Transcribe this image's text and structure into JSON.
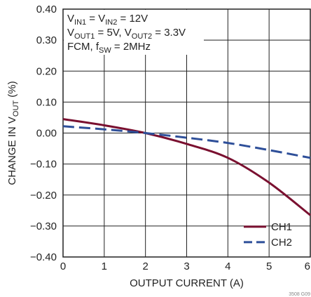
{
  "chart_data": {
    "type": "line",
    "xlabel": "OUTPUT CURRENT (A)",
    "ylabel_main": "CHANGE IN V",
    "ylabel_sub": "OUT",
    "ylabel_unit": " (%)",
    "xlim": [
      0,
      6
    ],
    "ylim": [
      -0.4,
      0.4
    ],
    "x_ticks": [
      0,
      1,
      2,
      3,
      4,
      5,
      6
    ],
    "x_tick_labels": [
      "0",
      "1",
      "2",
      "3",
      "4",
      "5",
      "6"
    ],
    "y_ticks": [
      0.4,
      0.3,
      0.2,
      0.1,
      0.0,
      -0.1,
      -0.2,
      -0.3,
      -0.4
    ],
    "y_tick_labels": [
      "0.40",
      "0.30",
      "0.20",
      "0.10",
      "0.00",
      "−0.10",
      "−0.20",
      "−0.30",
      "−0.40"
    ],
    "grid": true,
    "legend_position": "bottom-right",
    "series": [
      {
        "name": "CH1",
        "color": "#7a1030",
        "style": "solid",
        "x": [
          0,
          1,
          2,
          3,
          4,
          5,
          6
        ],
        "y": [
          0.045,
          0.025,
          0.0,
          -0.035,
          -0.08,
          -0.16,
          -0.265
        ]
      },
      {
        "name": "CH2",
        "color": "#2e4f99",
        "style": "dashed",
        "x": [
          0,
          1,
          2,
          3,
          4,
          5,
          6
        ],
        "y": [
          0.022,
          0.012,
          0.0,
          -0.015,
          -0.032,
          -0.055,
          -0.08
        ]
      }
    ],
    "annotations": [
      {
        "parts": [
          [
            "V",
            false
          ],
          [
            "IN1",
            true
          ],
          [
            " = V",
            false
          ],
          [
            "IN2",
            true
          ],
          [
            " = 12V",
            false
          ]
        ]
      },
      {
        "parts": [
          [
            "V",
            false
          ],
          [
            "OUT1",
            true
          ],
          [
            " = 5V, V",
            false
          ],
          [
            "OUT2",
            true
          ],
          [
            " = 3.3V",
            false
          ]
        ]
      },
      {
        "parts": [
          [
            "FCM, f",
            false
          ],
          [
            "SW",
            true
          ],
          [
            " = 2MHz",
            false
          ]
        ]
      }
    ],
    "figure_id": "3508 G09"
  }
}
